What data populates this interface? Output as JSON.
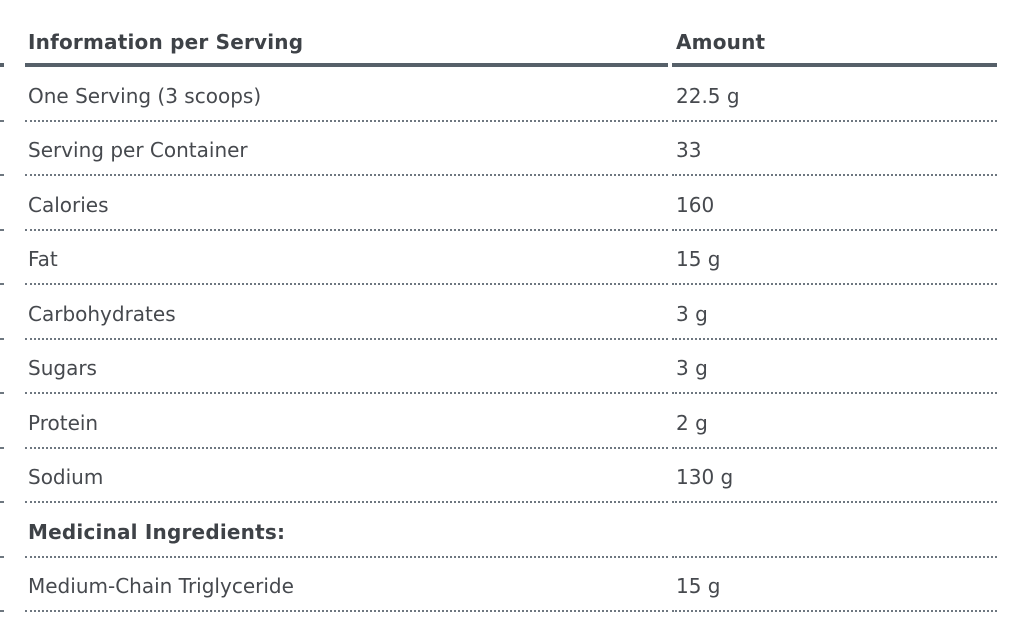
{
  "table": {
    "header": {
      "label": "Information per Serving",
      "amount": "Amount"
    },
    "rows": [
      {
        "label": "One Serving (3 scoops)",
        "amount": "22.5 g",
        "bold": false
      },
      {
        "label": "Serving per Container",
        "amount": "33",
        "bold": false
      },
      {
        "label": "Calories",
        "amount": "160",
        "bold": false
      },
      {
        "label": "Fat",
        "amount": "15 g",
        "bold": false
      },
      {
        "label": "Carbohydrates",
        "amount": "3 g",
        "bold": false
      },
      {
        "label": "Sugars",
        "amount": "3 g",
        "bold": false
      },
      {
        "label": "Protein",
        "amount": "2 g",
        "bold": false
      },
      {
        "label": "Sodium",
        "amount": "130 g",
        "bold": false
      },
      {
        "label": "Medicinal Ingredients:",
        "amount": "",
        "bold": true
      },
      {
        "label": "Medium-Chain Triglyceride",
        "amount": "15 g",
        "bold": false
      }
    ],
    "colors": {
      "header_rule": "#566069",
      "dotted_separator": "#6e7780",
      "text": "#46494e",
      "bold_text": "#3e4247",
      "background": "#ffffff"
    }
  }
}
